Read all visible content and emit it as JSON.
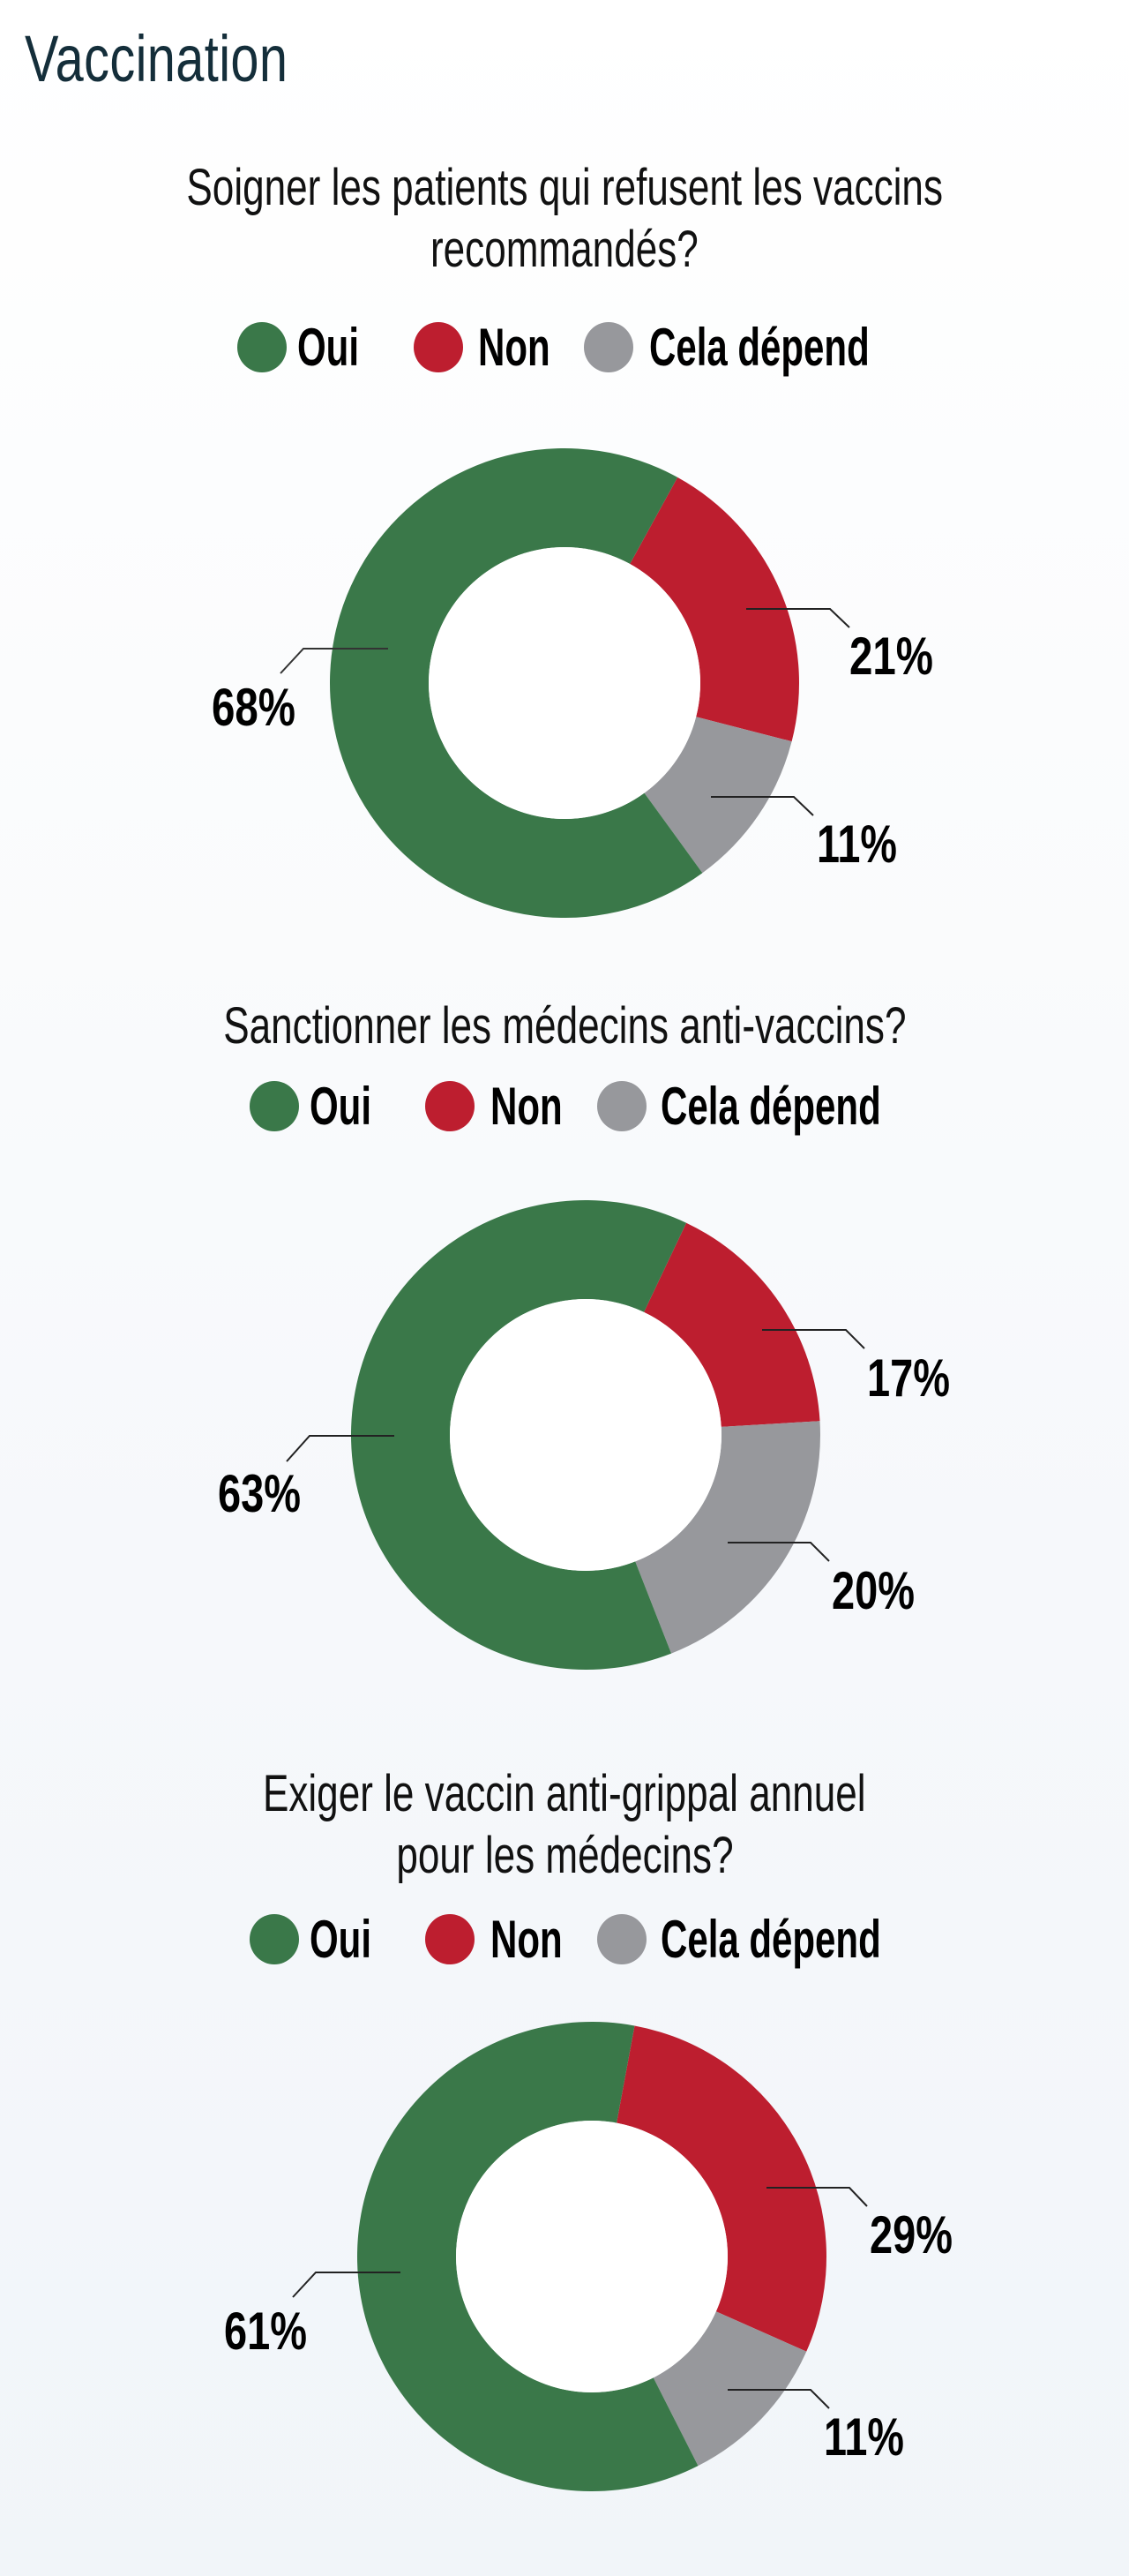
{
  "title": "Vaccination",
  "legend": [
    {
      "label": "Oui",
      "color": "#3a7849"
    },
    {
      "label": "Non",
      "color": "#bd1e2f"
    },
    {
      "label": "Cela dépend",
      "color": "#97989c"
    }
  ],
  "questions": [
    {
      "lines": [
        "Soigner les patients qui refusent les vaccins",
        "recommandés?"
      ]
    },
    {
      "lines": [
        "Sanctionner les médecins anti-vaccins?"
      ]
    },
    {
      "lines": [
        "Exiger le vaccin anti-grippal annuel",
        "pour les médecins?"
      ]
    }
  ],
  "chart_data": [
    {
      "type": "pie",
      "title": "Soigner les patients qui refusent les vaccins recommandés?",
      "categories": [
        "Oui",
        "Non",
        "Cela dépend"
      ],
      "values": [
        68,
        21,
        11
      ],
      "labels": [
        "68%",
        "21%",
        "11%"
      ],
      "colors": [
        "#3a7849",
        "#bd1e2f",
        "#97989c"
      ],
      "donut": true,
      "legend_position": "top"
    },
    {
      "type": "pie",
      "title": "Sanctionner les médecins anti-vaccins?",
      "categories": [
        "Oui",
        "Non",
        "Cela dépend"
      ],
      "values": [
        63,
        17,
        20
      ],
      "labels": [
        "63%",
        "17%",
        "20%"
      ],
      "colors": [
        "#3a7849",
        "#bd1e2f",
        "#97989c"
      ],
      "donut": true,
      "legend_position": "top"
    },
    {
      "type": "pie",
      "title": "Exiger le vaccin anti-grippal annuel pour les médecins?",
      "categories": [
        "Oui",
        "Non",
        "Cela dépend"
      ],
      "values": [
        61,
        29,
        11
      ],
      "labels": [
        "61%",
        "29%",
        "11%"
      ],
      "colors": [
        "#3a7849",
        "#bd1e2f",
        "#97989c"
      ],
      "donut": true,
      "legend_position": "top"
    }
  ]
}
